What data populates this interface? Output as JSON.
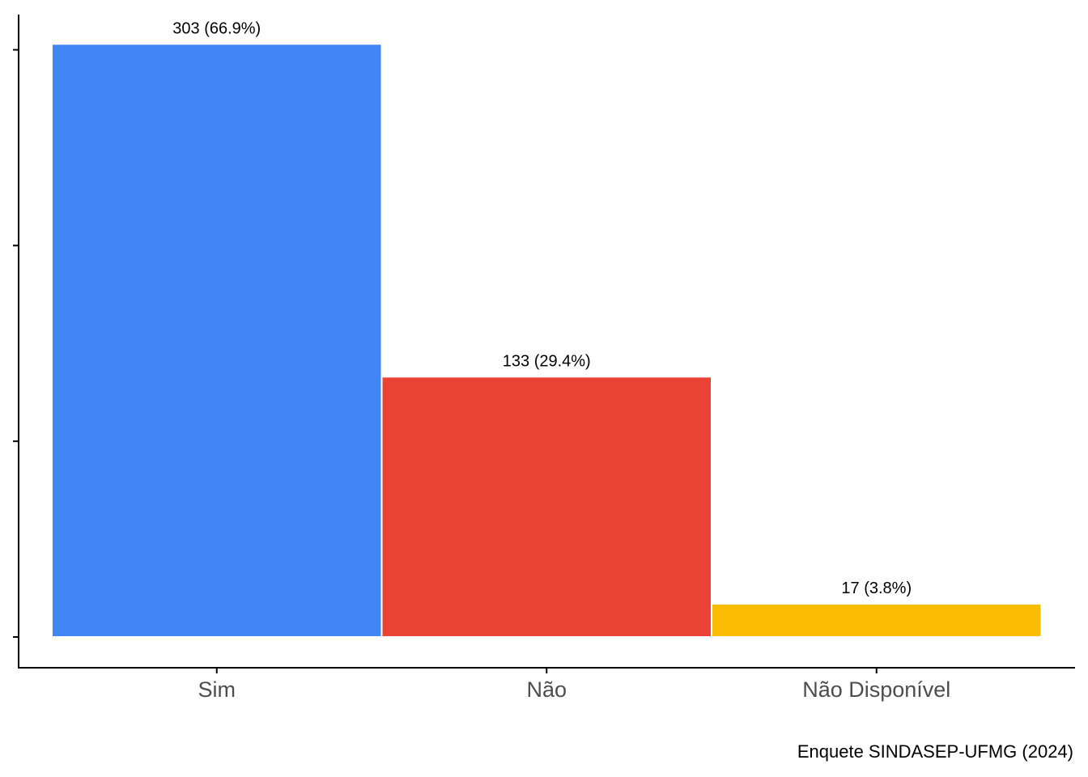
{
  "chart_data": {
    "type": "bar",
    "categories": [
      "Sim",
      "Não",
      "Não Disponível"
    ],
    "values": [
      303,
      133,
      17
    ],
    "value_labels": [
      "303 (66.9%)",
      "133 (29.4%)",
      "17 (3.8%)"
    ],
    "colors": [
      "#4285f4",
      "#ea4335",
      "#fbbc04"
    ],
    "ylim": [
      -15.7,
      318
    ],
    "yticks": [
      0,
      100,
      200,
      300
    ],
    "caption": "Enquete SINDASEP-UFMG (2024)",
    "grid": false
  }
}
